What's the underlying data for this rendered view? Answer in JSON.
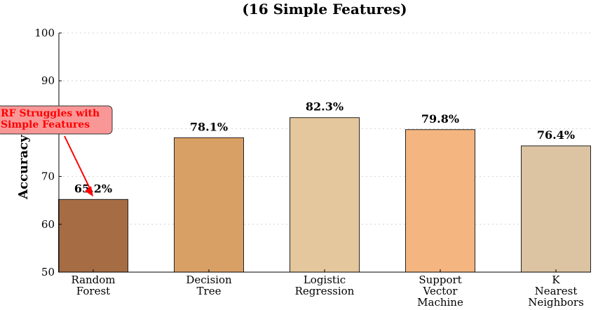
{
  "chart_data": {
    "type": "bar",
    "title": "(16 Simple Features)",
    "xlabel": "",
    "ylabel": "Accuracy (%)",
    "ylim": [
      50,
      100
    ],
    "yticks": [
      50,
      60,
      70,
      80,
      90,
      100
    ],
    "grid": true,
    "categories": [
      [
        "Random",
        "Forest"
      ],
      [
        "Decision",
        "Tree"
      ],
      [
        "Logistic",
        "Regression"
      ],
      [
        "Support",
        "Vector",
        "Machine"
      ],
      [
        "K",
        "Nearest",
        "Neighbors"
      ]
    ],
    "values": [
      65.2,
      78.1,
      82.3,
      79.8,
      76.4
    ],
    "value_labels": [
      "65.2%",
      "78.1%",
      "82.3%",
      "79.8%",
      "76.4%"
    ],
    "colors": [
      "#a66c44",
      "#d9a066",
      "#e5c79d",
      "#f4b580",
      "#dcc3a2"
    ],
    "annotation": {
      "lines": [
        "RF Struggles with",
        "Simple Features"
      ],
      "target_category": 0,
      "text_color": "#ff0000",
      "box_color": "#f99797",
      "arrow_color": "#ff0000"
    }
  }
}
